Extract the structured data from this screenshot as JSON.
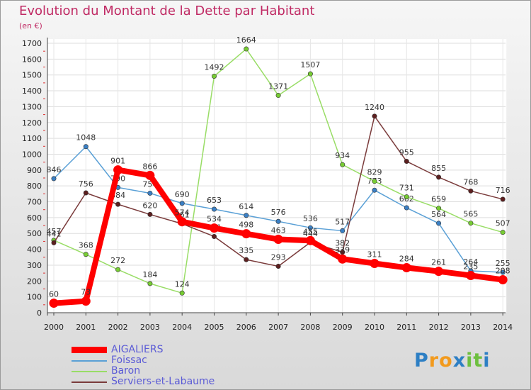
{
  "title": "Evolution du Montant de la Dette par Habitant",
  "unit_label": "(en €)",
  "logo": {
    "letters": [
      "P",
      "r",
      "o",
      "x",
      "i",
      "t",
      "i"
    ],
    "colors": [
      "#2d7fc4",
      "#f29a1d",
      "#f29a1d",
      "#2d7fc4",
      "#6dbf3f",
      "#6dbf3f",
      "#2d7fc4"
    ]
  },
  "chart_data": {
    "type": "line",
    "title": "Evolution du Montant de la Dette par Habitant",
    "ylabel": "(en €)",
    "xlabel": "",
    "ylim": [
      0,
      1700
    ],
    "yticks": [
      0,
      100,
      200,
      300,
      400,
      500,
      600,
      700,
      800,
      900,
      1000,
      1100,
      1200,
      1300,
      1400,
      1500,
      1600,
      1700
    ],
    "x": [
      "2000",
      "2001",
      "2002",
      "2003",
      "2004",
      "2005",
      "2006",
      "2007",
      "2008",
      "2009",
      "2010",
      "2011",
      "2012",
      "2013",
      "2014"
    ],
    "grid": true,
    "legend_position": "bottom-left",
    "series": [
      {
        "name": "Foissac",
        "color": "#5aa0d6",
        "marker_color": "#3a7fc4",
        "values": [
          846,
          1048,
          790,
          754,
          690,
          653,
          614,
          576,
          536,
          517,
          773,
          662,
          564,
          264,
          255
        ]
      },
      {
        "name": "Baron",
        "color": "#99dd66",
        "marker_color": "#77cc33",
        "values": [
          457,
          368,
          272,
          184,
          124,
          1492,
          1664,
          1371,
          1507,
          934,
          829,
          731,
          659,
          565,
          507
        ]
      },
      {
        "name": "Serviers-et-Labaume",
        "color": "#7a3b3b",
        "marker_color": "#5c1f1f",
        "values": [
          441,
          756,
          684,
          620,
          561,
          481,
          335,
          293,
          444,
          382,
          1240,
          955,
          855,
          768,
          716
        ]
      },
      {
        "name": "AIGALIERS",
        "color": "#ff0000",
        "marker_color": "#ff0000",
        "values": [
          60,
          73,
          901,
          866,
          574,
          534,
          498,
          463,
          455,
          339,
          311,
          284,
          261,
          235,
          208
        ]
      }
    ],
    "legend_order": [
      "AIGALIERS",
      "Foissac",
      "Baron",
      "Serviers-et-Labaume"
    ]
  }
}
